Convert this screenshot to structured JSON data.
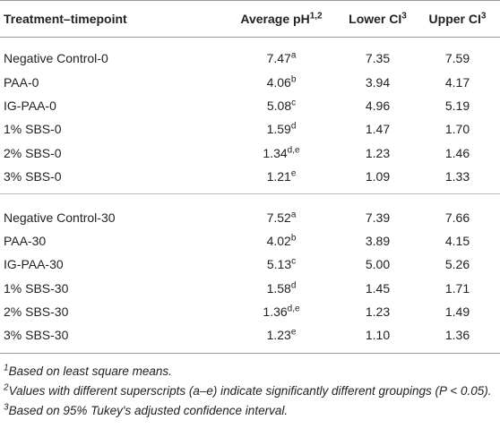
{
  "table": {
    "header": [
      {
        "text": "Treatment–timepoint"
      },
      {
        "text": "Average pH",
        "sup": "1,2"
      },
      {
        "text": "Lower CI",
        "sup": "3"
      },
      {
        "text": "Upper CI",
        "sup": "3"
      }
    ],
    "groups": [
      [
        [
          "Negative Control-0",
          {
            "value": "7.47",
            "sup": "a"
          },
          "7.35",
          "7.59"
        ],
        [
          "PAA-0",
          {
            "value": "4.06",
            "sup": "b"
          },
          "3.94",
          "4.17"
        ],
        [
          "IG-PAA-0",
          {
            "value": "5.08",
            "sup": "c"
          },
          "4.96",
          "5.19"
        ],
        [
          "1% SBS-0",
          {
            "value": "1.59",
            "sup": "d"
          },
          "1.47",
          "1.70"
        ],
        [
          "2% SBS-0",
          {
            "value": "1.34",
            "sup": "d,e"
          },
          "1.23",
          "1.46"
        ],
        [
          "3% SBS-0",
          {
            "value": "1.21",
            "sup": "e"
          },
          "1.09",
          "1.33"
        ]
      ],
      [
        [
          "Negative Control-30",
          {
            "value": "7.52",
            "sup": "a"
          },
          "7.39",
          "7.66"
        ],
        [
          "PAA-30",
          {
            "value": "4.02",
            "sup": "b"
          },
          "3.89",
          "4.15"
        ],
        [
          "IG-PAA-30",
          {
            "value": "5.13",
            "sup": "c"
          },
          "5.00",
          "5.26"
        ],
        [
          "1% SBS-30",
          {
            "value": "1.58",
            "sup": "d"
          },
          "1.45",
          "1.71"
        ],
        [
          "2% SBS-30",
          {
            "value": "1.36",
            "sup": "d,e"
          },
          "1.23",
          "1.49"
        ],
        [
          "3% SBS-30",
          {
            "value": "1.23",
            "sup": "e"
          },
          "1.10",
          "1.36"
        ]
      ]
    ]
  },
  "footnotes": [
    {
      "sup": "1",
      "text": "Based on least square means."
    },
    {
      "sup": "2",
      "text": "Values with different superscripts (a–e) indicate significantly different groupings (P < 0.05)."
    },
    {
      "sup": "3",
      "text": "Based on 95% Tukey's adjusted confidence interval."
    }
  ]
}
